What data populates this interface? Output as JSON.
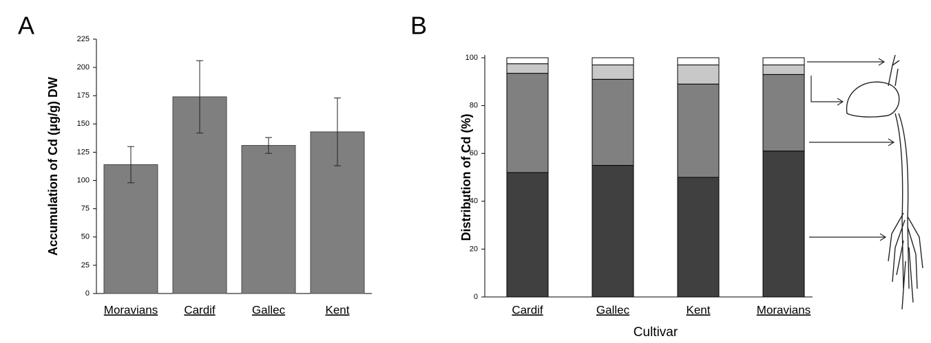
{
  "chart_data": [
    {
      "type": "bar",
      "label": "A",
      "ylabel": "Accumulation of Cd (μg/g) DW",
      "categories": [
        "Moravians",
        "Cardif",
        "Gallec",
        "Kent"
      ],
      "values": [
        114,
        174,
        131,
        143
      ],
      "errors": [
        16,
        32,
        7,
        30
      ],
      "color": "#7f7f7f",
      "ylim": [
        0,
        225
      ],
      "yticks": [
        0,
        25,
        50,
        75,
        100,
        125,
        150,
        175,
        200,
        225
      ]
    },
    {
      "type": "stacked_bar",
      "label": "B",
      "xlabel": "Cultivar",
      "ylabel": "Distribution of Cd (%)",
      "categories": [
        "Cardif",
        "Gallec",
        "Kent",
        "Moravians"
      ],
      "series": [
        {
          "color": "#404040",
          "values": [
            52,
            55,
            50,
            61
          ]
        },
        {
          "color": "#808080",
          "values": [
            41.5,
            36,
            39,
            32
          ]
        },
        {
          "color": "#c8c8c8",
          "values": [
            4,
            6,
            8,
            4
          ]
        },
        {
          "color": "#ffffff",
          "values": [
            2.5,
            3,
            3,
            3
          ]
        }
      ],
      "ylim": [
        0,
        100
      ],
      "yticks": [
        0,
        20,
        40,
        60,
        80,
        100
      ]
    }
  ]
}
